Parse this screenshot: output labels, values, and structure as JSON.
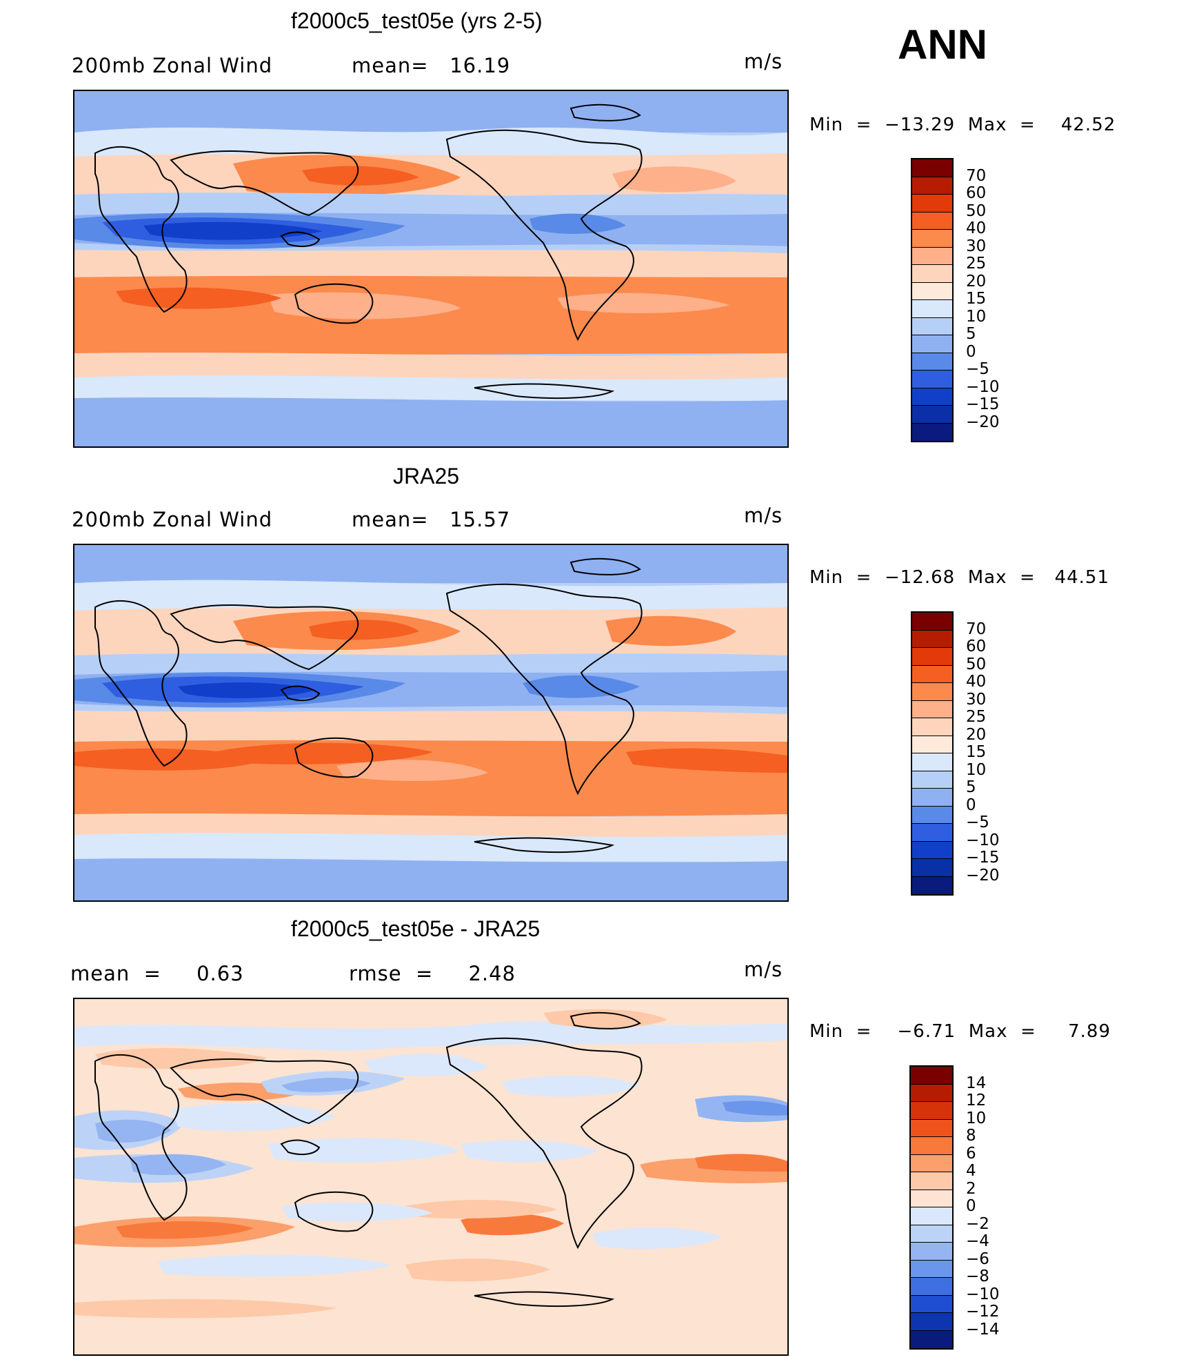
{
  "season": "ANN",
  "panels": [
    {
      "title": "f2000c5_test05e (yrs 2-5)",
      "left_label": "200mb Zonal Wind",
      "center_label": "mean=   16.19",
      "units": "m/s",
      "min_max": "Min  =  −13.29  Max  =    42.52",
      "colorbar_labels": [
        "70",
        "60",
        "50",
        "40",
        "30",
        "25",
        "20",
        "15",
        "10",
        "5",
        "0",
        "−5",
        "−10",
        "−15",
        "−20"
      ]
    },
    {
      "title": "JRA25",
      "left_label": "200mb Zonal Wind",
      "center_label": "mean=   15.57",
      "units": "m/s",
      "min_max": "Min  =  −12.68  Max  =   44.51",
      "colorbar_labels": [
        "70",
        "60",
        "50",
        "40",
        "30",
        "25",
        "20",
        "15",
        "10",
        "5",
        "0",
        "−5",
        "−10",
        "−15",
        "−20"
      ]
    },
    {
      "title": "f2000c5_test05e - JRA25",
      "left_label": "mean  =     0.63",
      "center_label": "rmse  =     2.48",
      "units": "m/s",
      "min_max": "Min  =    −6.71  Max  =     7.89",
      "colorbar_labels": [
        "14",
        "12",
        "10",
        "8",
        "6",
        "4",
        "2",
        "0",
        "−2",
        "−4",
        "−6",
        "−8",
        "−10",
        "−12",
        "−14"
      ]
    }
  ],
  "colors": {
    "abs_scale": [
      "#7a0000",
      "#b51c00",
      "#e23a08",
      "#f55f22",
      "#fb8a4c",
      "#fdb08a",
      "#fdd5bd",
      "#fdeadb",
      "#d9e8fb",
      "#b6cff7",
      "#8fb1f1",
      "#5a8ae7",
      "#2f5fe0",
      "#123fca",
      "#0a2fa6",
      "#0a1b7d"
    ],
    "diff_scale": [
      "#7a0000",
      "#b51c00",
      "#d8320a",
      "#ef531b",
      "#f8793c",
      "#fb9f6b",
      "#fdc9a8",
      "#fde3d1",
      "#dbe8fb",
      "#bcd3f7",
      "#94b5f1",
      "#6a96eb",
      "#3f70e2",
      "#1f4ed3",
      "#0e35b0",
      "#0a1b7d"
    ]
  }
}
